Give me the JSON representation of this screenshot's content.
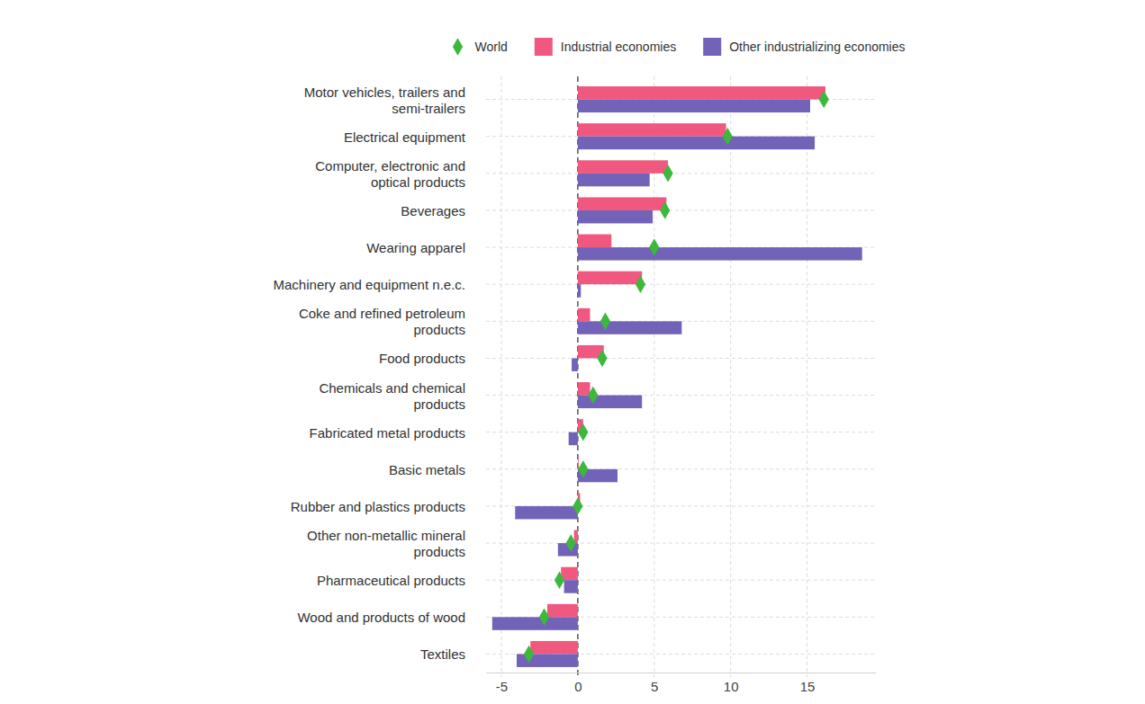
{
  "chart_data": {
    "type": "bar",
    "orientation": "horizontal",
    "categories": [
      "Motor vehicles, trailers and\nsemi-trailers",
      "Electrical equipment",
      "Computer, electronic and\noptical products",
      "Beverages",
      "Wearing apparel",
      "Machinery and equipment n.e.c.",
      "Coke and refined petroleum\nproducts",
      "Food products",
      "Chemicals and chemical\nproducts",
      "Fabricated metal products",
      "Basic metals",
      "Rubber and plastics products",
      "Other non-metallic mineral\nproducts",
      "Pharmaceutical products",
      "Wood and products of wood",
      "Textiles"
    ],
    "series": [
      {
        "name": "World",
        "type": "scatter",
        "marker": "diamond",
        "color": "#3cb83c",
        "values": [
          16.1,
          9.8,
          5.9,
          5.7,
          5.0,
          4.1,
          1.8,
          1.6,
          1.0,
          0.35,
          0.35,
          0.0,
          -0.45,
          -1.2,
          -2.2,
          -3.2
        ]
      },
      {
        "name": "Industrial economies",
        "type": "bar",
        "color": "#f0587f",
        "values": [
          16.2,
          9.7,
          5.9,
          5.8,
          2.2,
          4.2,
          0.8,
          1.7,
          0.8,
          0.35,
          0.05,
          0.15,
          -0.25,
          -1.1,
          -2.0,
          -3.1
        ]
      },
      {
        "name": "Other industrializing economies",
        "type": "bar",
        "color": "#7263b8",
        "values": [
          15.2,
          15.5,
          4.7,
          4.9,
          18.6,
          0.2,
          6.8,
          -0.4,
          4.2,
          -0.6,
          2.6,
          -4.1,
          -1.3,
          -0.9,
          -5.6,
          -4.0
        ]
      }
    ],
    "xlim": [
      -6,
      19.5
    ],
    "xticks": [
      -5,
      0,
      5,
      10,
      15
    ],
    "grid": true,
    "legend": "top"
  }
}
